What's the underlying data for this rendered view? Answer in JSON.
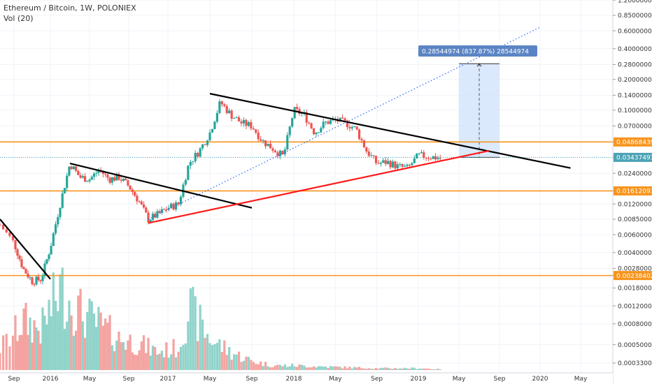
{
  "header": {
    "title": "Ethereum / Bitcoin, 1W, POLONIEX",
    "volume_label": "Vol (20)"
  },
  "colors": {
    "up": "#26a69a",
    "down": "#ef5350",
    "vol_up": "#8fd3c9",
    "vol_down": "#f4a3a0",
    "horizontal_level": "#f7941d",
    "resistance": "#000000",
    "support": "#ff1a1a",
    "projection": "#2962ff",
    "measure_box": "#cfe2fb",
    "measure_tag": "#5b84c4",
    "price_tag": "#4ba3b5"
  },
  "chart_data": {
    "type": "candlestick",
    "title": "Ethereum / Bitcoin, 1W, POLONIEX",
    "y_scale": "log",
    "x_ticks": [
      "Sep",
      "2016",
      "May",
      "Sep",
      "2017",
      "May",
      "Sep",
      "2018",
      "May",
      "Sep",
      "2019",
      "May",
      "Sep",
      "2020",
      "May"
    ],
    "y_ticks": [
      "1.20000000",
      "0.85000000",
      "0.60000000",
      "0.40000000",
      "0.28000000",
      "0.20000000",
      "0.14000000",
      "0.10000000",
      "0.07000000",
      "0.04868439",
      "0.03437493",
      "0.02400000",
      "0.01612093",
      "0.01200000",
      "0.00850000",
      "0.00600000",
      "0.00400000",
      "0.00280000",
      "0.00238402",
      "0.00180000",
      "0.00120000",
      "0.00080000",
      "0.00050000",
      "0.00033000"
    ],
    "horizontal_levels": [
      {
        "value": "0.04868439",
        "label": "0.04868439"
      },
      {
        "value": "0.01612093",
        "label": "0.01612093"
      },
      {
        "value": "0.00238402",
        "label": "0.00238402"
      }
    ],
    "current_price": {
      "value": "0.03437493",
      "label": "0.03437493"
    },
    "measurement": {
      "label": "0.28544974 (837.87%) 28544974"
    },
    "price_keypoints": [
      {
        "date": "2015-08",
        "value": 0.0075
      },
      {
        "date": "2015-09",
        "value": 0.005
      },
      {
        "date": "2015-10",
        "value": 0.0028
      },
      {
        "date": "2015-11",
        "value": 0.0021
      },
      {
        "date": "2015-12",
        "value": 0.0022
      },
      {
        "date": "2016-01",
        "value": 0.0045
      },
      {
        "date": "2016-02",
        "value": 0.012
      },
      {
        "date": "2016-03",
        "value": 0.03
      },
      {
        "date": "2016-04",
        "value": 0.022
      },
      {
        "date": "2016-05",
        "value": 0.021
      },
      {
        "date": "2016-06",
        "value": 0.026
      },
      {
        "date": "2016-07",
        "value": 0.021
      },
      {
        "date": "2016-08",
        "value": 0.022
      },
      {
        "date": "2016-09",
        "value": 0.018
      },
      {
        "date": "2016-10",
        "value": 0.013
      },
      {
        "date": "2016-11",
        "value": 0.0085
      },
      {
        "date": "2016-12",
        "value": 0.0095
      },
      {
        "date": "2017-01",
        "value": 0.011
      },
      {
        "date": "2017-02",
        "value": 0.012
      },
      {
        "date": "2017-03",
        "value": 0.03
      },
      {
        "date": "2017-04",
        "value": 0.04
      },
      {
        "date": "2017-05",
        "value": 0.06
      },
      {
        "date": "2017-06",
        "value": 0.12
      },
      {
        "date": "2017-07",
        "value": 0.09
      },
      {
        "date": "2017-08",
        "value": 0.075
      },
      {
        "date": "2017-09",
        "value": 0.07
      },
      {
        "date": "2017-10",
        "value": 0.05
      },
      {
        "date": "2017-11",
        "value": 0.042
      },
      {
        "date": "2017-12",
        "value": 0.035
      },
      {
        "date": "2018-01",
        "value": 0.1
      },
      {
        "date": "2018-02",
        "value": 0.09
      },
      {
        "date": "2018-03",
        "value": 0.06
      },
      {
        "date": "2018-04",
        "value": 0.075
      },
      {
        "date": "2018-05",
        "value": 0.08
      },
      {
        "date": "2018-06",
        "value": 0.075
      },
      {
        "date": "2018-07",
        "value": 0.065
      },
      {
        "date": "2018-08",
        "value": 0.04
      },
      {
        "date": "2018-09",
        "value": 0.03
      },
      {
        "date": "2018-10",
        "value": 0.031
      },
      {
        "date": "2018-11",
        "value": 0.028
      },
      {
        "date": "2018-12",
        "value": 0.027
      },
      {
        "date": "2019-01",
        "value": 0.036
      },
      {
        "date": "2019-02",
        "value": 0.035
      },
      {
        "date": "2019-03",
        "value": 0.034
      }
    ],
    "volume_keypoints": [
      {
        "date": "2015-08",
        "value": 0.25
      },
      {
        "date": "2015-10",
        "value": 0.55
      },
      {
        "date": "2015-12",
        "value": 0.45
      },
      {
        "date": "2016-02",
        "value": 0.9
      },
      {
        "date": "2016-04",
        "value": 0.65
      },
      {
        "date": "2016-06",
        "value": 0.5
      },
      {
        "date": "2016-08",
        "value": 0.35
      },
      {
        "date": "2016-10",
        "value": 0.3
      },
      {
        "date": "2016-12",
        "value": 0.2
      },
      {
        "date": "2017-02",
        "value": 0.25
      },
      {
        "date": "2017-03",
        "value": 0.7
      },
      {
        "date": "2017-05",
        "value": 0.35
      },
      {
        "date": "2017-07",
        "value": 0.2
      },
      {
        "date": "2017-09",
        "value": 0.1
      },
      {
        "date": "2017-11",
        "value": 0.05
      },
      {
        "date": "2018-01",
        "value": 0.05
      },
      {
        "date": "2018-06",
        "value": 0.03
      },
      {
        "date": "2018-09",
        "value": 0.02
      },
      {
        "date": "2019-01",
        "value": 0.02
      },
      {
        "date": "2019-03",
        "value": 0.01
      }
    ],
    "trendlines": [
      {
        "name": "resistance-2015",
        "type": "solid",
        "from": {
          "date": "2015-08",
          "value": 0.0085
        },
        "to": {
          "date": "2016-01",
          "value": 0.0022
        }
      },
      {
        "name": "resistance-2016",
        "type": "solid",
        "from": {
          "date": "2016-03",
          "value": 0.03
        },
        "to": {
          "date": "2017-09",
          "value": 0.011
        }
      },
      {
        "name": "resistance-2017",
        "type": "solid",
        "from": {
          "date": "2017-05",
          "value": 0.145
        },
        "to": {
          "date": "2020-04",
          "value": 0.027
        }
      },
      {
        "name": "support",
        "type": "solid",
        "from": {
          "date": "2016-11",
          "value": 0.0078
        },
        "to": {
          "date": "2019-08",
          "value": 0.04
        }
      },
      {
        "name": "projection",
        "type": "dotted",
        "from": {
          "date": "2016-11",
          "value": 0.0085
        },
        "to": {
          "date": "2020-01",
          "value": 0.65
        }
      }
    ]
  }
}
